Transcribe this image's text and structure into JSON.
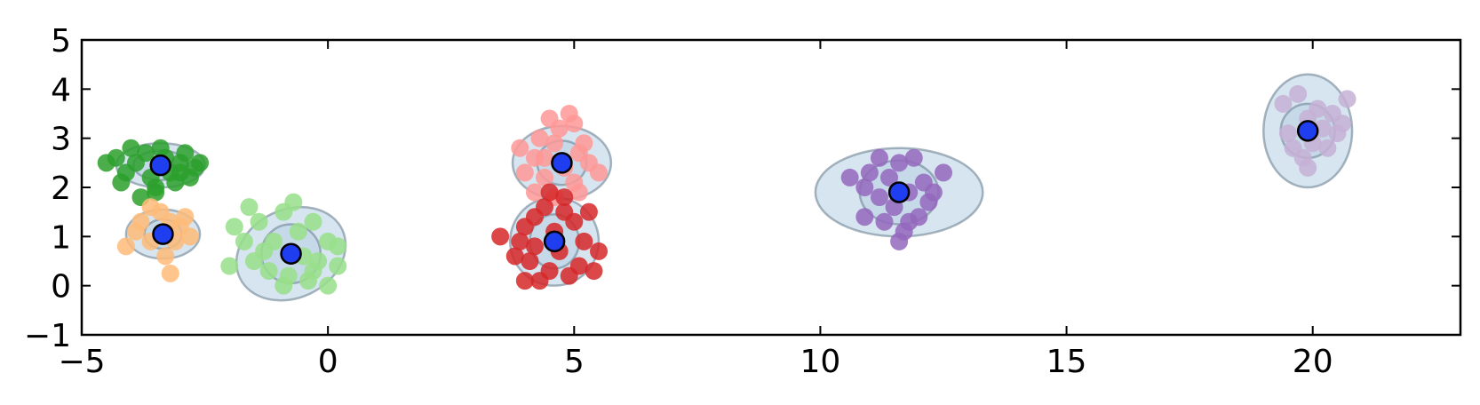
{
  "chart_data": {
    "type": "scatter",
    "title": "",
    "xlabel": "",
    "ylabel": "",
    "xlim": [
      -5,
      23
    ],
    "ylim": [
      -1,
      5
    ],
    "xticks": [
      -5,
      0,
      5,
      10,
      15,
      20
    ],
    "yticks": [
      -1,
      0,
      1,
      2,
      3,
      4,
      5
    ],
    "xtick_labels": [
      "−5",
      "0",
      "5",
      "10",
      "15",
      "20"
    ],
    "ytick_labels": [
      "−1",
      "0",
      "1",
      "2",
      "3",
      "4",
      "5"
    ],
    "grid": false,
    "legend": "none",
    "clusters": [
      {
        "color": "#2ca02c",
        "center": [
          -3.4,
          2.45
        ],
        "points": [
          [
            -4.5,
            2.5
          ],
          [
            -4.3,
            2.6
          ],
          [
            -4.1,
            2.3
          ],
          [
            -4.2,
            2.1
          ],
          [
            -3.9,
            2.5
          ],
          [
            -3.7,
            2.7
          ],
          [
            -3.6,
            2.2
          ],
          [
            -3.5,
            2.0
          ],
          [
            -3.3,
            2.6
          ],
          [
            -3.2,
            2.3
          ],
          [
            -3.0,
            2.5
          ],
          [
            -2.9,
            2.7
          ],
          [
            -2.7,
            2.4
          ],
          [
            -2.6,
            2.5
          ],
          [
            -3.8,
            1.8
          ],
          [
            -3.5,
            1.9
          ],
          [
            -3.1,
            2.1
          ],
          [
            -2.8,
            2.2
          ],
          [
            -4.0,
            2.8
          ],
          [
            -3.4,
            2.8
          ],
          [
            -3.0,
            2.3
          ]
        ]
      },
      {
        "color": "#ffbb78",
        "center": [
          -3.35,
          1.05
        ],
        "points": [
          [
            -4.1,
            0.8
          ],
          [
            -3.9,
            1.1
          ],
          [
            -3.8,
            1.3
          ],
          [
            -3.6,
            0.9
          ],
          [
            -3.4,
            1.5
          ],
          [
            -3.2,
            1.3
          ],
          [
            -3.1,
            0.9
          ],
          [
            -2.9,
            1.4
          ],
          [
            -2.8,
            1.0
          ],
          [
            -3.3,
            0.6
          ],
          [
            -3.2,
            0.25
          ],
          [
            -3.6,
            1.6
          ],
          [
            -3.0,
            1.2
          ]
        ]
      },
      {
        "color": "#98df8a",
        "center": [
          -0.75,
          0.65
        ],
        "points": [
          [
            -2.0,
            0.4
          ],
          [
            -1.9,
            1.2
          ],
          [
            -1.7,
            0.9
          ],
          [
            -1.5,
            0.5
          ],
          [
            -1.4,
            1.3
          ],
          [
            -1.2,
            0.3
          ],
          [
            -1.1,
            0.9
          ],
          [
            -0.9,
            1.5
          ],
          [
            -0.8,
            0.2
          ],
          [
            -0.6,
            1.1
          ],
          [
            -0.5,
            0.6
          ],
          [
            -0.4,
            0.1
          ],
          [
            -0.3,
            1.3
          ],
          [
            -0.2,
            0.5
          ],
          [
            0.0,
            0.9
          ],
          [
            0.2,
            0.4
          ],
          [
            0.2,
            0.8
          ],
          [
            -0.9,
            0.0
          ],
          [
            -1.6,
            1.6
          ],
          [
            -0.7,
            1.7
          ],
          [
            0.0,
            0.0
          ],
          [
            -1.3,
            0.7
          ],
          [
            -0.3,
            0.3
          ]
        ]
      },
      {
        "color": "#ff9896",
        "center": [
          4.75,
          2.5
        ],
        "points": [
          [
            3.9,
            2.8
          ],
          [
            4.0,
            2.3
          ],
          [
            4.2,
            2.6
          ],
          [
            4.3,
            3.0
          ],
          [
            4.4,
            2.2
          ],
          [
            4.5,
            3.4
          ],
          [
            4.6,
            2.9
          ],
          [
            4.7,
            3.2
          ],
          [
            4.8,
            2.4
          ],
          [
            4.9,
            3.5
          ],
          [
            5.0,
            3.3
          ],
          [
            5.1,
            2.7
          ],
          [
            5.2,
            2.9
          ],
          [
            5.3,
            2.5
          ],
          [
            5.5,
            2.3
          ],
          [
            4.2,
            1.9
          ],
          [
            4.6,
            1.8
          ],
          [
            5.1,
            1.9
          ],
          [
            5.0,
            2.1
          ],
          [
            4.4,
            2.6
          ]
        ]
      },
      {
        "color": "#d62728",
        "center": [
          4.6,
          0.9
        ],
        "points": [
          [
            3.5,
            1.0
          ],
          [
            3.8,
            0.6
          ],
          [
            3.9,
            0.9
          ],
          [
            4.0,
            1.2
          ],
          [
            4.1,
            0.5
          ],
          [
            4.2,
            1.4
          ],
          [
            4.3,
            0.1
          ],
          [
            4.4,
            1.6
          ],
          [
            4.5,
            0.3
          ],
          [
            4.6,
            1.1
          ],
          [
            4.7,
            0.7
          ],
          [
            4.8,
            1.5
          ],
          [
            4.9,
            0.2
          ],
          [
            5.0,
            1.3
          ],
          [
            5.1,
            0.4
          ],
          [
            5.2,
            0.9
          ],
          [
            5.4,
            0.3
          ],
          [
            5.5,
            0.7
          ],
          [
            4.0,
            0.1
          ],
          [
            4.8,
            1.8
          ],
          [
            4.2,
            0.8
          ],
          [
            5.3,
            1.5
          ],
          [
            4.5,
            1.9
          ]
        ]
      },
      {
        "color": "#9467bd",
        "center": [
          11.6,
          1.9
        ],
        "points": [
          [
            10.6,
            2.2
          ],
          [
            10.9,
            1.4
          ],
          [
            11.0,
            2.3
          ],
          [
            11.2,
            1.8
          ],
          [
            11.3,
            1.3
          ],
          [
            11.4,
            2.2
          ],
          [
            11.5,
            1.6
          ],
          [
            11.6,
            2.5
          ],
          [
            11.7,
            1.1
          ],
          [
            11.8,
            1.9
          ],
          [
            11.9,
            2.6
          ],
          [
            12.0,
            1.4
          ],
          [
            12.1,
            2.1
          ],
          [
            12.2,
            1.7
          ],
          [
            12.3,
            1.9
          ],
          [
            12.5,
            2.3
          ],
          [
            11.6,
            0.9
          ],
          [
            11.8,
            1.3
          ],
          [
            11.2,
            2.6
          ],
          [
            10.9,
            2.0
          ]
        ]
      },
      {
        "color": "#c5b0d5",
        "center": [
          19.9,
          3.15
        ],
        "points": [
          [
            19.4,
            3.7
          ],
          [
            19.5,
            3.1
          ],
          [
            19.6,
            2.8
          ],
          [
            19.7,
            3.9
          ],
          [
            19.8,
            2.6
          ],
          [
            19.9,
            3.4
          ],
          [
            20.0,
            2.9
          ],
          [
            20.1,
            3.6
          ],
          [
            20.2,
            3.2
          ],
          [
            20.3,
            2.8
          ],
          [
            20.4,
            3.5
          ],
          [
            20.5,
            3.1
          ],
          [
            20.6,
            3.3
          ],
          [
            20.7,
            3.8
          ],
          [
            19.9,
            2.4
          ]
        ]
      }
    ],
    "ellipses": [
      {
        "cx": -3.4,
        "cy": 2.45,
        "rx": 0.9,
        "ry": 0.45,
        "angle": 0
      },
      {
        "cx": -3.4,
        "cy": 2.45,
        "rx": 0.55,
        "ry": 0.3,
        "angle": 0
      },
      {
        "cx": -3.35,
        "cy": 1.05,
        "rx": 0.75,
        "ry": 0.5,
        "angle": 0
      },
      {
        "cx": -3.35,
        "cy": 1.05,
        "rx": 0.38,
        "ry": 0.3,
        "angle": 0
      },
      {
        "cx": -0.75,
        "cy": 0.65,
        "rx": 1.15,
        "ry": 0.9,
        "angle": -25
      },
      {
        "cx": -0.75,
        "cy": 0.65,
        "rx": 0.6,
        "ry": 0.6,
        "angle": 0
      },
      {
        "cx": 4.75,
        "cy": 2.5,
        "rx": 1.0,
        "ry": 0.75,
        "angle": 0
      },
      {
        "cx": 4.75,
        "cy": 2.5,
        "rx": 0.5,
        "ry": 0.45,
        "angle": 0
      },
      {
        "cx": 4.6,
        "cy": 0.9,
        "rx": 0.9,
        "ry": 0.9,
        "angle": 0
      },
      {
        "cx": 4.6,
        "cy": 0.9,
        "rx": 0.5,
        "ry": 0.55,
        "angle": 0
      },
      {
        "cx": 11.6,
        "cy": 1.9,
        "rx": 1.7,
        "ry": 0.9,
        "angle": 0
      },
      {
        "cx": 11.6,
        "cy": 1.9,
        "rx": 0.8,
        "ry": 0.65,
        "angle": 0
      },
      {
        "cx": 19.9,
        "cy": 3.15,
        "rx": 0.9,
        "ry": 1.15,
        "angle": 0
      },
      {
        "cx": 19.9,
        "cy": 3.15,
        "rx": 0.55,
        "ry": 0.55,
        "angle": 0
      }
    ],
    "center_color": "#1f3ef0",
    "ellipse_fill": "#b6cfe4",
    "ellipse_stroke": "#6e8494"
  }
}
